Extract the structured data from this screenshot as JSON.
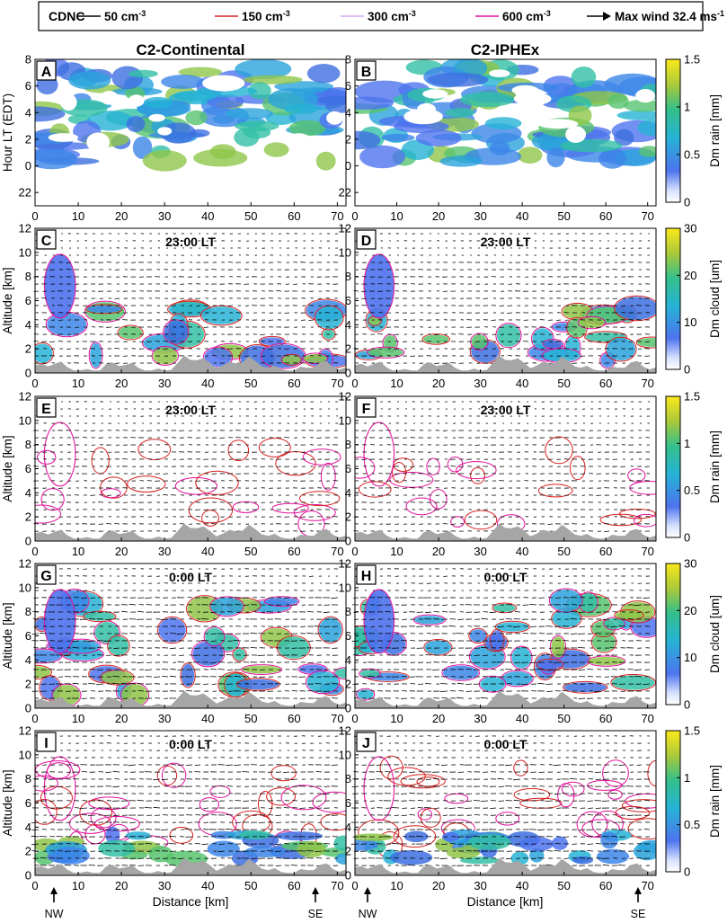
{
  "chart_data": {
    "type": "heatmap",
    "legend": {
      "title": "CDNC",
      "items": [
        {
          "label": "50 cm",
          "sup": "-3",
          "color": "#000000"
        },
        {
          "label": "150 cm",
          "sup": "-3",
          "color": "#d62020"
        },
        {
          "label": "300 cm",
          "sup": "-3",
          "color": "#d8a6f0"
        },
        {
          "label": "600 cm",
          "sup": "-3",
          "color": "#e0109a"
        },
        {
          "label": "Max wind 32.4 ms",
          "sup": "-1",
          "color": "#000000"
        }
      ]
    },
    "columns": [
      "C2-Continental",
      "C2-IPHEx"
    ],
    "x": {
      "label": "Distance [km]",
      "range": [
        0,
        72
      ],
      "ticks": [
        0,
        10,
        20,
        30,
        40,
        50,
        60,
        70
      ]
    },
    "markers": [
      "NW",
      "SE"
    ],
    "rows": [
      {
        "ylabel": "Hour LT (EDT)",
        "yticks": [
          "22",
          "0",
          "2",
          "4",
          "6",
          "8"
        ],
        "yrange": [
          -3,
          8
        ],
        "colorbar": {
          "label": "Dm rain [mm]",
          "ticks": [
            "0",
            "0.5",
            "1",
            "1.5"
          ],
          "range": [
            0,
            1.5
          ]
        }
      },
      {
        "ylabel": "Altitude [km]",
        "yticks": [
          "0",
          "2",
          "4",
          "6",
          "8",
          "10",
          "12"
        ],
        "yrange": [
          0,
          12
        ],
        "colorbar": {
          "label": "Dm cloud [um]",
          "ticks": [
            "0",
            "10",
            "20",
            "30"
          ],
          "range": [
            0,
            30
          ]
        }
      },
      {
        "ylabel": "Altitude [km]",
        "yticks": [
          "0",
          "2",
          "4",
          "6",
          "8",
          "10",
          "12"
        ],
        "yrange": [
          0,
          12
        ],
        "colorbar": {
          "label": "Dm rain [mm]",
          "ticks": [
            "0",
            "0.5",
            "1",
            "1.5"
          ],
          "range": [
            0,
            1.5
          ]
        }
      },
      {
        "ylabel": "Altitude [km]",
        "yticks": [
          "0",
          "2",
          "4",
          "6",
          "8",
          "10",
          "12"
        ],
        "yrange": [
          0,
          12
        ],
        "colorbar": {
          "label": "Dm cloud [um]",
          "ticks": [
            "0",
            "10",
            "20",
            "30"
          ],
          "range": [
            0,
            30
          ]
        }
      },
      {
        "ylabel": "Altitude [km]",
        "yticks": [
          "0",
          "2",
          "4",
          "6",
          "8",
          "10",
          "12"
        ],
        "yrange": [
          0,
          12
        ],
        "colorbar": {
          "label": "Dm rain [mm]",
          "ticks": [
            "0",
            "0.5",
            "1",
            "1.5"
          ],
          "range": [
            0,
            1.5
          ]
        }
      }
    ],
    "panels": [
      {
        "id": "A",
        "time": ""
      },
      {
        "id": "B",
        "time": ""
      },
      {
        "id": "C",
        "time": "23:00 LT"
      },
      {
        "id": "D",
        "time": "23:00 LT"
      },
      {
        "id": "E",
        "time": "23:00 LT"
      },
      {
        "id": "F",
        "time": "23:00 LT"
      },
      {
        "id": "G",
        "time": "0:00 LT"
      },
      {
        "id": "H",
        "time": "0:00 LT"
      },
      {
        "id": "I",
        "time": "0:00 LT"
      },
      {
        "id": "J",
        "time": "0:00 LT"
      }
    ]
  }
}
